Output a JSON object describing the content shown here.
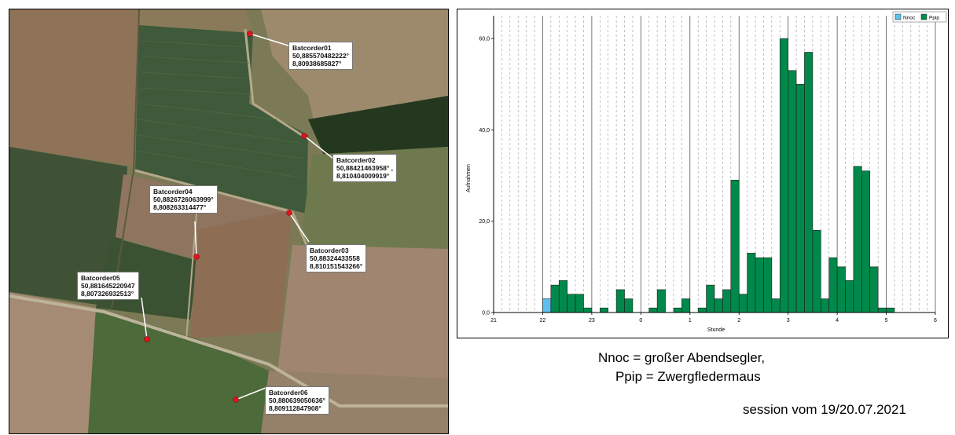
{
  "map": {
    "recorders": [
      {
        "name": "Batcorder01",
        "lat": "50,885570482222°",
        "lon": "8,80938685827°"
      },
      {
        "name": "Batcorder02",
        "lat": "50,88421463958° ,",
        "lon": "8,810404009919°"
      },
      {
        "name": "Batcorder03",
        "lat": "50,88324433558",
        "lon": "8,810151543266°"
      },
      {
        "name": "Batcorder04",
        "lat": "50,8826726063999°",
        "lon": "8,808263314477°"
      },
      {
        "name": "Batcorder05",
        "lat": "50,881645220947",
        "lon": "8,807326932513°"
      },
      {
        "name": "Batcorder06",
        "lat": "50,880639050636°",
        "lon": "8,809112847908°"
      }
    ],
    "marker_color": "#e0141e"
  },
  "chart_data": {
    "type": "bar",
    "xlabel": "Stunde",
    "ylabel": "Aufnahmen",
    "x_ticks": [
      {
        "value": 21,
        "label": "21"
      },
      {
        "value": 22,
        "label": "22"
      },
      {
        "value": 23,
        "label": "23"
      },
      {
        "value": 24,
        "label": "0"
      },
      {
        "value": 25,
        "label": "1"
      },
      {
        "value": 26,
        "label": "2"
      },
      {
        "value": 27,
        "label": "3"
      },
      {
        "value": 28,
        "label": "4"
      },
      {
        "value": 29,
        "label": "5"
      },
      {
        "value": 30,
        "label": "6"
      }
    ],
    "xlim": [
      21,
      30
    ],
    "ylim": [
      0,
      65
    ],
    "y_ticks": [
      {
        "value": 0,
        "label": "0,0"
      },
      {
        "value": 20,
        "label": "20,0"
      },
      {
        "value": 40,
        "label": "40,0"
      },
      {
        "value": 60,
        "label": "60,0"
      }
    ],
    "bin_width_minutes": 10,
    "grid": "vertical lines: solid every hour, dashed every 10 minutes",
    "legend_position": "top-right",
    "series": [
      {
        "name": "Nnoc",
        "color": "#5bc0eb",
        "bins": [
          {
            "start": 22.0,
            "value": 3
          }
        ]
      },
      {
        "name": "Ppip",
        "color": "#00894a",
        "bins": [
          {
            "start": 22.1667,
            "value": 6
          },
          {
            "start": 22.3333,
            "value": 7
          },
          {
            "start": 22.5,
            "value": 4
          },
          {
            "start": 22.6667,
            "value": 4
          },
          {
            "start": 22.8333,
            "value": 1
          },
          {
            "start": 23.1667,
            "value": 1
          },
          {
            "start": 23.5,
            "value": 5
          },
          {
            "start": 23.6667,
            "value": 3
          },
          {
            "start": 24.1667,
            "value": 1
          },
          {
            "start": 24.3333,
            "value": 5
          },
          {
            "start": 24.6667,
            "value": 1
          },
          {
            "start": 24.8333,
            "value": 3
          },
          {
            "start": 25.1667,
            "value": 1
          },
          {
            "start": 25.3333,
            "value": 6
          },
          {
            "start": 25.5,
            "value": 3
          },
          {
            "start": 25.6667,
            "value": 5
          },
          {
            "start": 25.8333,
            "value": 29
          },
          {
            "start": 26.0,
            "value": 4
          },
          {
            "start": 26.1667,
            "value": 13
          },
          {
            "start": 26.3333,
            "value": 12
          },
          {
            "start": 26.5,
            "value": 12
          },
          {
            "start": 26.6667,
            "value": 3
          },
          {
            "start": 26.8333,
            "value": 60
          },
          {
            "start": 27.0,
            "value": 53
          },
          {
            "start": 27.1667,
            "value": 50
          },
          {
            "start": 27.3333,
            "value": 57
          },
          {
            "start": 27.5,
            "value": 18
          },
          {
            "start": 27.6667,
            "value": 3
          },
          {
            "start": 27.8333,
            "value": 12
          },
          {
            "start": 28.0,
            "value": 10
          },
          {
            "start": 28.1667,
            "value": 7
          },
          {
            "start": 28.3333,
            "value": 32
          },
          {
            "start": 28.5,
            "value": 31
          },
          {
            "start": 28.6667,
            "value": 10
          },
          {
            "start": 28.8333,
            "value": 1
          },
          {
            "start": 29.0,
            "value": 1
          }
        ]
      }
    ]
  },
  "captions": {
    "species_line1": "Nnoc = großer Abendsegler,",
    "species_line2": "Ppip = Zwergfledermaus",
    "session": "session vom 19/20.07.2021"
  }
}
